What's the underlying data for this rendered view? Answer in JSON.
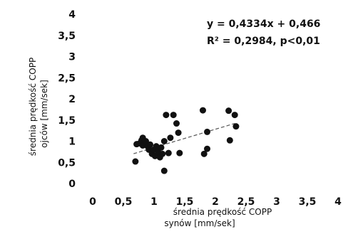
{
  "chart_data": {
    "type": "scatter",
    "xlabel_line1": "średnia prędkość COPP",
    "xlabel_line2": "synów [mm/sek]",
    "ylabel_line1": "średnia prędkość COPP",
    "ylabel_line2": "ojców [mm/sek]",
    "xlim": [
      0,
      4
    ],
    "ylim": [
      0,
      4
    ],
    "x_ticks": [
      0,
      0.5,
      1,
      1.5,
      2,
      2.5,
      3,
      3.5,
      4
    ],
    "x_tick_labels": [
      "0",
      "0,5",
      "1",
      "1,5",
      "2",
      "2,5",
      "3",
      "3,5",
      "4"
    ],
    "y_ticks": [
      0,
      0.5,
      1,
      1.5,
      2,
      2.5,
      3,
      3.5,
      4
    ],
    "y_tick_labels": [
      "0",
      "0,5",
      "1",
      "1,5",
      "2",
      "2,5",
      "3",
      "3,5",
      "4"
    ],
    "equation": "y = 0,4334x + 0,466",
    "r_squared": "R² = 0,2984, p<0,01",
    "trendline": {
      "slope": 0.4334,
      "intercept": 0.466,
      "x_from": 0.55,
      "x_to": 2.2
    },
    "points": [
      {
        "x": 0.58,
        "y": 0.52
      },
      {
        "x": 0.6,
        "y": 0.93
      },
      {
        "x": 0.65,
        "y": 0.95
      },
      {
        "x": 0.68,
        "y": 1.02
      },
      {
        "x": 0.7,
        "y": 1.08
      },
      {
        "x": 0.7,
        "y": 0.9
      },
      {
        "x": 0.75,
        "y": 1.0
      },
      {
        "x": 0.78,
        "y": 0.88
      },
      {
        "x": 0.8,
        "y": 0.8
      },
      {
        "x": 0.82,
        "y": 0.92
      },
      {
        "x": 0.85,
        "y": 0.7
      },
      {
        "x": 0.88,
        "y": 0.8
      },
      {
        "x": 0.9,
        "y": 0.65
      },
      {
        "x": 0.92,
        "y": 0.88
      },
      {
        "x": 0.95,
        "y": 0.75
      },
      {
        "x": 0.98,
        "y": 0.62
      },
      {
        "x": 1.0,
        "y": 0.85
      },
      {
        "x": 1.02,
        "y": 0.7
      },
      {
        "x": 1.05,
        "y": 1.0
      },
      {
        "x": 1.05,
        "y": 0.3
      },
      {
        "x": 1.08,
        "y": 1.62
      },
      {
        "x": 1.12,
        "y": 0.72
      },
      {
        "x": 1.15,
        "y": 1.08
      },
      {
        "x": 1.2,
        "y": 1.62
      },
      {
        "x": 1.25,
        "y": 1.42
      },
      {
        "x": 1.28,
        "y": 1.2
      },
      {
        "x": 1.3,
        "y": 0.72
      },
      {
        "x": 1.68,
        "y": 1.73
      },
      {
        "x": 1.7,
        "y": 0.7
      },
      {
        "x": 1.75,
        "y": 1.22
      },
      {
        "x": 1.75,
        "y": 0.82
      },
      {
        "x": 2.1,
        "y": 1.72
      },
      {
        "x": 2.12,
        "y": 1.02
      },
      {
        "x": 2.2,
        "y": 1.62
      },
      {
        "x": 2.22,
        "y": 1.35
      }
    ],
    "grid": false,
    "legend": "none"
  }
}
